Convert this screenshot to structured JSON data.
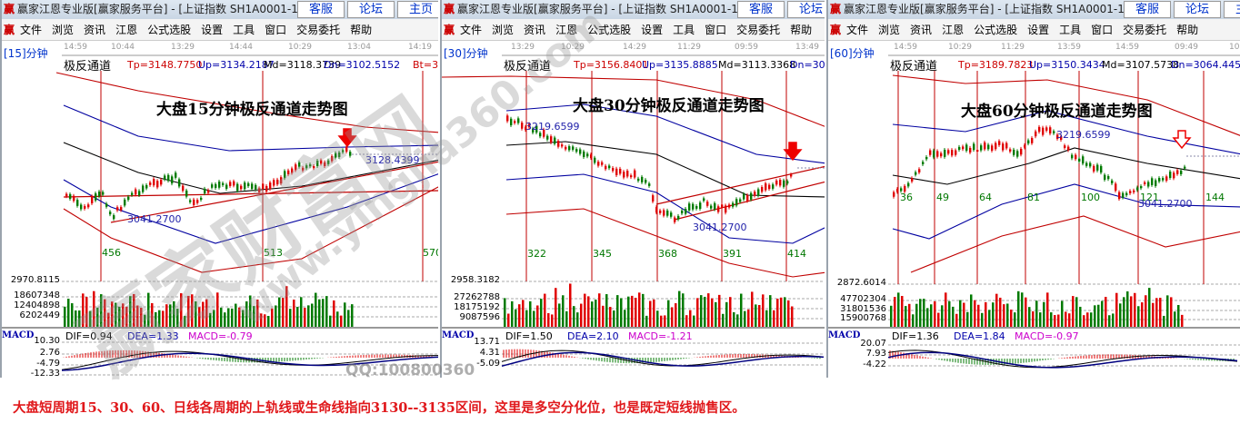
{
  "colors": {
    "up": "#e00000",
    "down": "#007a00",
    "band_red": "#c00000",
    "band_blue": "#0000a0",
    "life_line": "#000000",
    "caption": "#e0181b",
    "dif": "#000000",
    "dea": "#000080",
    "macd": "#c000c0"
  },
  "window": {
    "logo": "赢",
    "title": "赢家江恩专业版[赢家服务平台] - [上证指数  SH1A0001-1",
    "buttons": [
      "客服",
      "论坛",
      "主页"
    ],
    "menu": [
      "文件",
      "浏览",
      "资讯",
      "江恩",
      "公式选股",
      "设置",
      "工具",
      "窗口",
      "交易委托",
      "帮助"
    ]
  },
  "panels": [
    {
      "period": "[15]分钟",
      "times": [
        "14:59",
        "10:44",
        "13:29",
        "14:44",
        "10:29",
        "13:04",
        "14:19"
      ],
      "indicator": {
        "name": "极反通道",
        "tp": "Tp=3148.7750",
        "up": "Up=3134.2187",
        "md": "Md=3118.3739",
        "dn": "Dn=3102.5152",
        "bt": "Bt=30"
      },
      "title": "大盘15分钟极反通道走势图",
      "cycles": [
        "456",
        "513",
        "570"
      ],
      "prices": [
        "3128.4399",
        "3041.2700"
      ],
      "bottom_price": "2970.8115",
      "volume_ticks": [
        "18607348",
        "12404898",
        "6202449"
      ],
      "macd": {
        "label": "MACD",
        "dif": "DIF=0.94",
        "dea": "DEA=1.33",
        "macd": "MACD=-0.79",
        "ticks": [
          "10.30",
          "2.76",
          "-4.79",
          "-12.33"
        ]
      }
    },
    {
      "period": "[30]分钟",
      "times": [
        "13:29",
        "10:29",
        "14:29",
        "11:29",
        "09:59",
        "13:49"
      ],
      "indicator": {
        "name": "极反通道",
        "tp": "Tp=3156.8401",
        "up": "Up=3135.8885",
        "md": "Md=3113.3368",
        "dn": "Dn=3090."
      },
      "title": "大盘30分钟极反通道走势图",
      "cycles": [
        "322",
        "345",
        "368",
        "391",
        "414"
      ],
      "prices": [
        "3219.6599",
        "3041.2700"
      ],
      "bottom_price": "2958.3182",
      "volume_ticks": [
        "27262788",
        "18175192",
        "9087596"
      ],
      "macd": {
        "label": "MACD",
        "dif": "DIF=1.50",
        "dea": "DEA=2.10",
        "macd": "MACD=-1.21",
        "ticks": [
          "13.71",
          "4.31",
          "-5.09"
        ]
      }
    },
    {
      "period": "[60]分钟",
      "times": [
        "14:59",
        "10:29",
        "11:29",
        "13:59",
        "14:59",
        "09:49",
        "10"
      ],
      "indicator": {
        "name": "极反通道",
        "tp": "Tp=3189.7823",
        "up": "Up=3150.3434",
        "md": "Md=3107.5738",
        "dn": "Dn=3064.4455"
      },
      "title": "大盘60分钟极反通道走势图",
      "cycles": [
        "36",
        "49",
        "64",
        "81",
        "100",
        "121",
        "144"
      ],
      "prices": [
        "3219.6599",
        "3041.2700"
      ],
      "bottom_price": "2872.6014",
      "volume_ticks": [
        "47702304",
        "31801536",
        "15900768"
      ],
      "macd": {
        "label": "MACD",
        "dif": "DIF=1.36",
        "dea": "DEA=1.84",
        "macd": "MACD=-0.97",
        "ticks": [
          "20.07",
          "7.93",
          "-4.22"
        ]
      }
    }
  ],
  "watermark": {
    "site": "赢家财富网",
    "url": "www.yingjia360.com",
    "qq": "QQ:100800360"
  },
  "caption": "大盘短周期15、30、60、日线各周期的上轨线或生命线指向3130--3135区间，这里是多空分化位，也是既定短线抛售区。"
}
